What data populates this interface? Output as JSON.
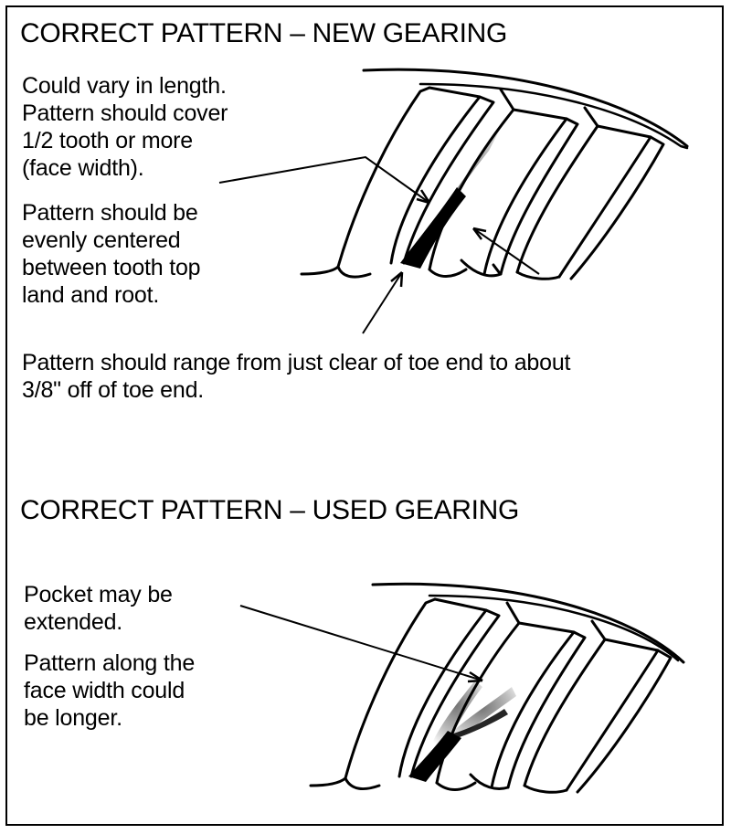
{
  "top_section": {
    "heading": "CORRECT PATTERN – NEW GEARING",
    "note_length": "Could vary in length.\nPattern should cover\n1/2 tooth or more\n(face width).",
    "note_centered": "Pattern should be\nevenly centered\nbetween tooth top\nland and root.",
    "note_range": "Pattern should range from just clear of toe end to about\n3/8\" off of toe end."
  },
  "bottom_section": {
    "heading": "CORRECT PATTERN – USED GEARING",
    "note_pocket": "Pocket may be\nextended.",
    "note_longer": "Pattern along the\nface width could\nbe longer."
  },
  "colors": {
    "ink": "#000000",
    "paper": "#ffffff"
  }
}
